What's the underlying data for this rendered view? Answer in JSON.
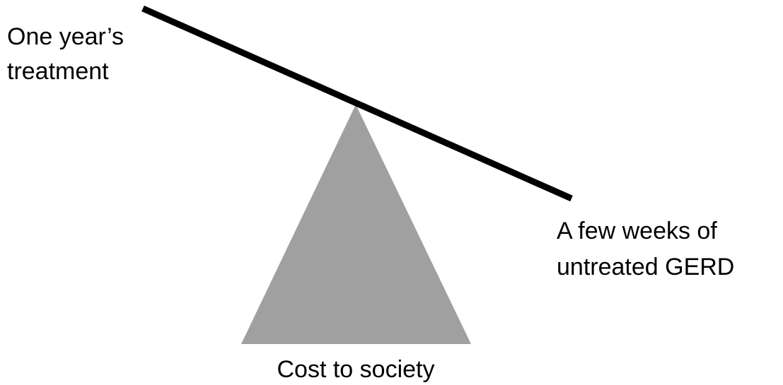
{
  "left_label": {
    "lines": [
      "One year’s",
      "treatment"
    ]
  },
  "right_label": {
    "lines": [
      "A few weeks of",
      "untreated GERD"
    ]
  },
  "fulcrum_label": "Cost to society"
}
